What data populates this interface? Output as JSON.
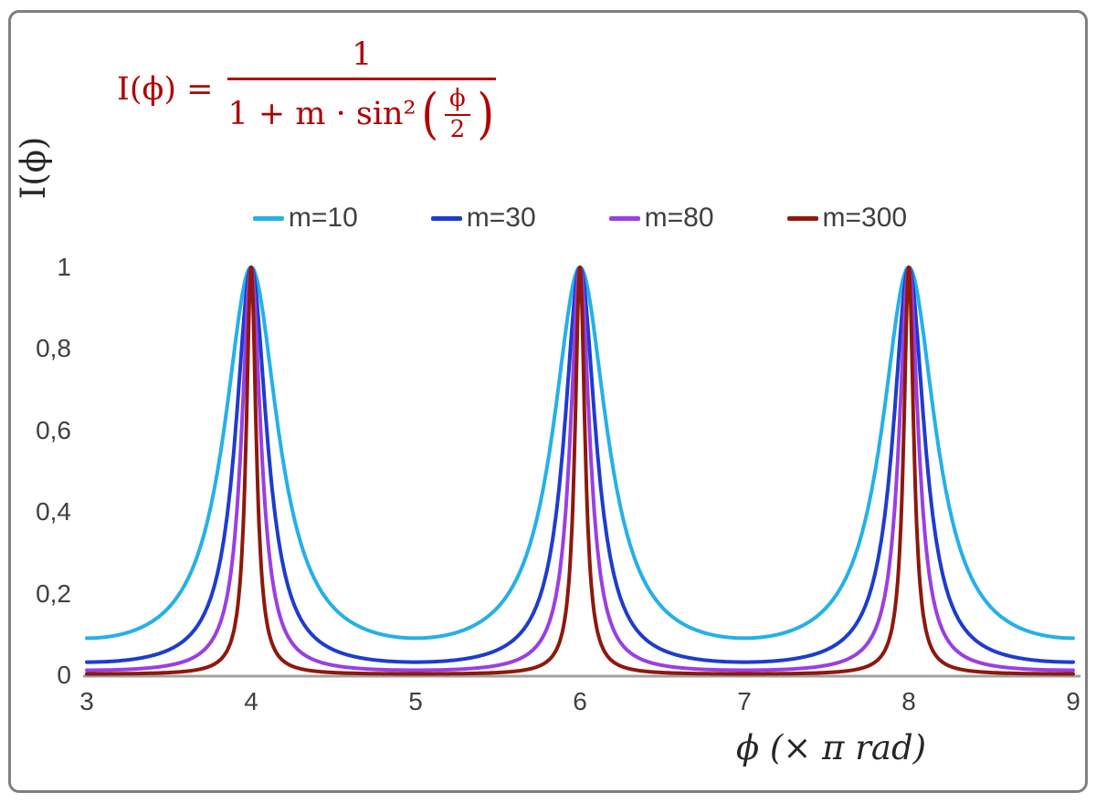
{
  "formula": {
    "lhs": "I(ϕ) =",
    "numerator": "1",
    "denominator_prefix": "1 + m · sin²",
    "open_paren": "(",
    "inner_numerator": "ϕ",
    "inner_denominator": "2",
    "close_paren": ")",
    "color": "#b20000"
  },
  "axes": {
    "y_label": "I(ϕ)",
    "x_label": "ϕ (× π rad)",
    "x_ticks": [
      "3",
      "4",
      "5",
      "6",
      "7",
      "8",
      "9"
    ],
    "y_ticks": [
      "0",
      "0,2",
      "0,4",
      "0,6",
      "0,8",
      "1"
    ]
  },
  "chart_data": {
    "type": "line",
    "formula": "I(ϕ) = 1 / (1 + m · sin²(ϕ/2))",
    "xlabel": "ϕ (× π rad)",
    "ylabel": "I(ϕ)",
    "xlim": [
      3,
      9
    ],
    "ylim": [
      0,
      1
    ],
    "x_tick_values": [
      3,
      4,
      5,
      6,
      7,
      8,
      9
    ],
    "y_tick_values": [
      0,
      0.2,
      0.4,
      0.6,
      0.8,
      1
    ],
    "grid": false,
    "legend_position": "top-center",
    "peaks_at_x": [
      4,
      6,
      8
    ],
    "peak_value": 1,
    "sample_x": [
      3,
      3.5,
      4,
      4.5,
      5
    ],
    "series": [
      {
        "name": "m=10",
        "m": 10,
        "color": "#25b0e8",
        "min_value": 0.0909,
        "sample_y": [
          0.0909,
          0.1667,
          1,
          0.1667,
          0.0909
        ]
      },
      {
        "name": "m=30",
        "m": 30,
        "color": "#1d3ccf",
        "min_value": 0.0323,
        "sample_y": [
          0.0323,
          0.0625,
          1,
          0.0625,
          0.0323
        ]
      },
      {
        "name": "m=80",
        "m": 80,
        "color": "#9a3fe3",
        "min_value": 0.0123,
        "sample_y": [
          0.0123,
          0.0244,
          1,
          0.0244,
          0.0123
        ]
      },
      {
        "name": "m=300",
        "m": 300,
        "color": "#8e180c",
        "min_value": 0.0033,
        "sample_y": [
          0.0033,
          0.0066,
          1,
          0.0066,
          0.0033
        ]
      }
    ]
  }
}
